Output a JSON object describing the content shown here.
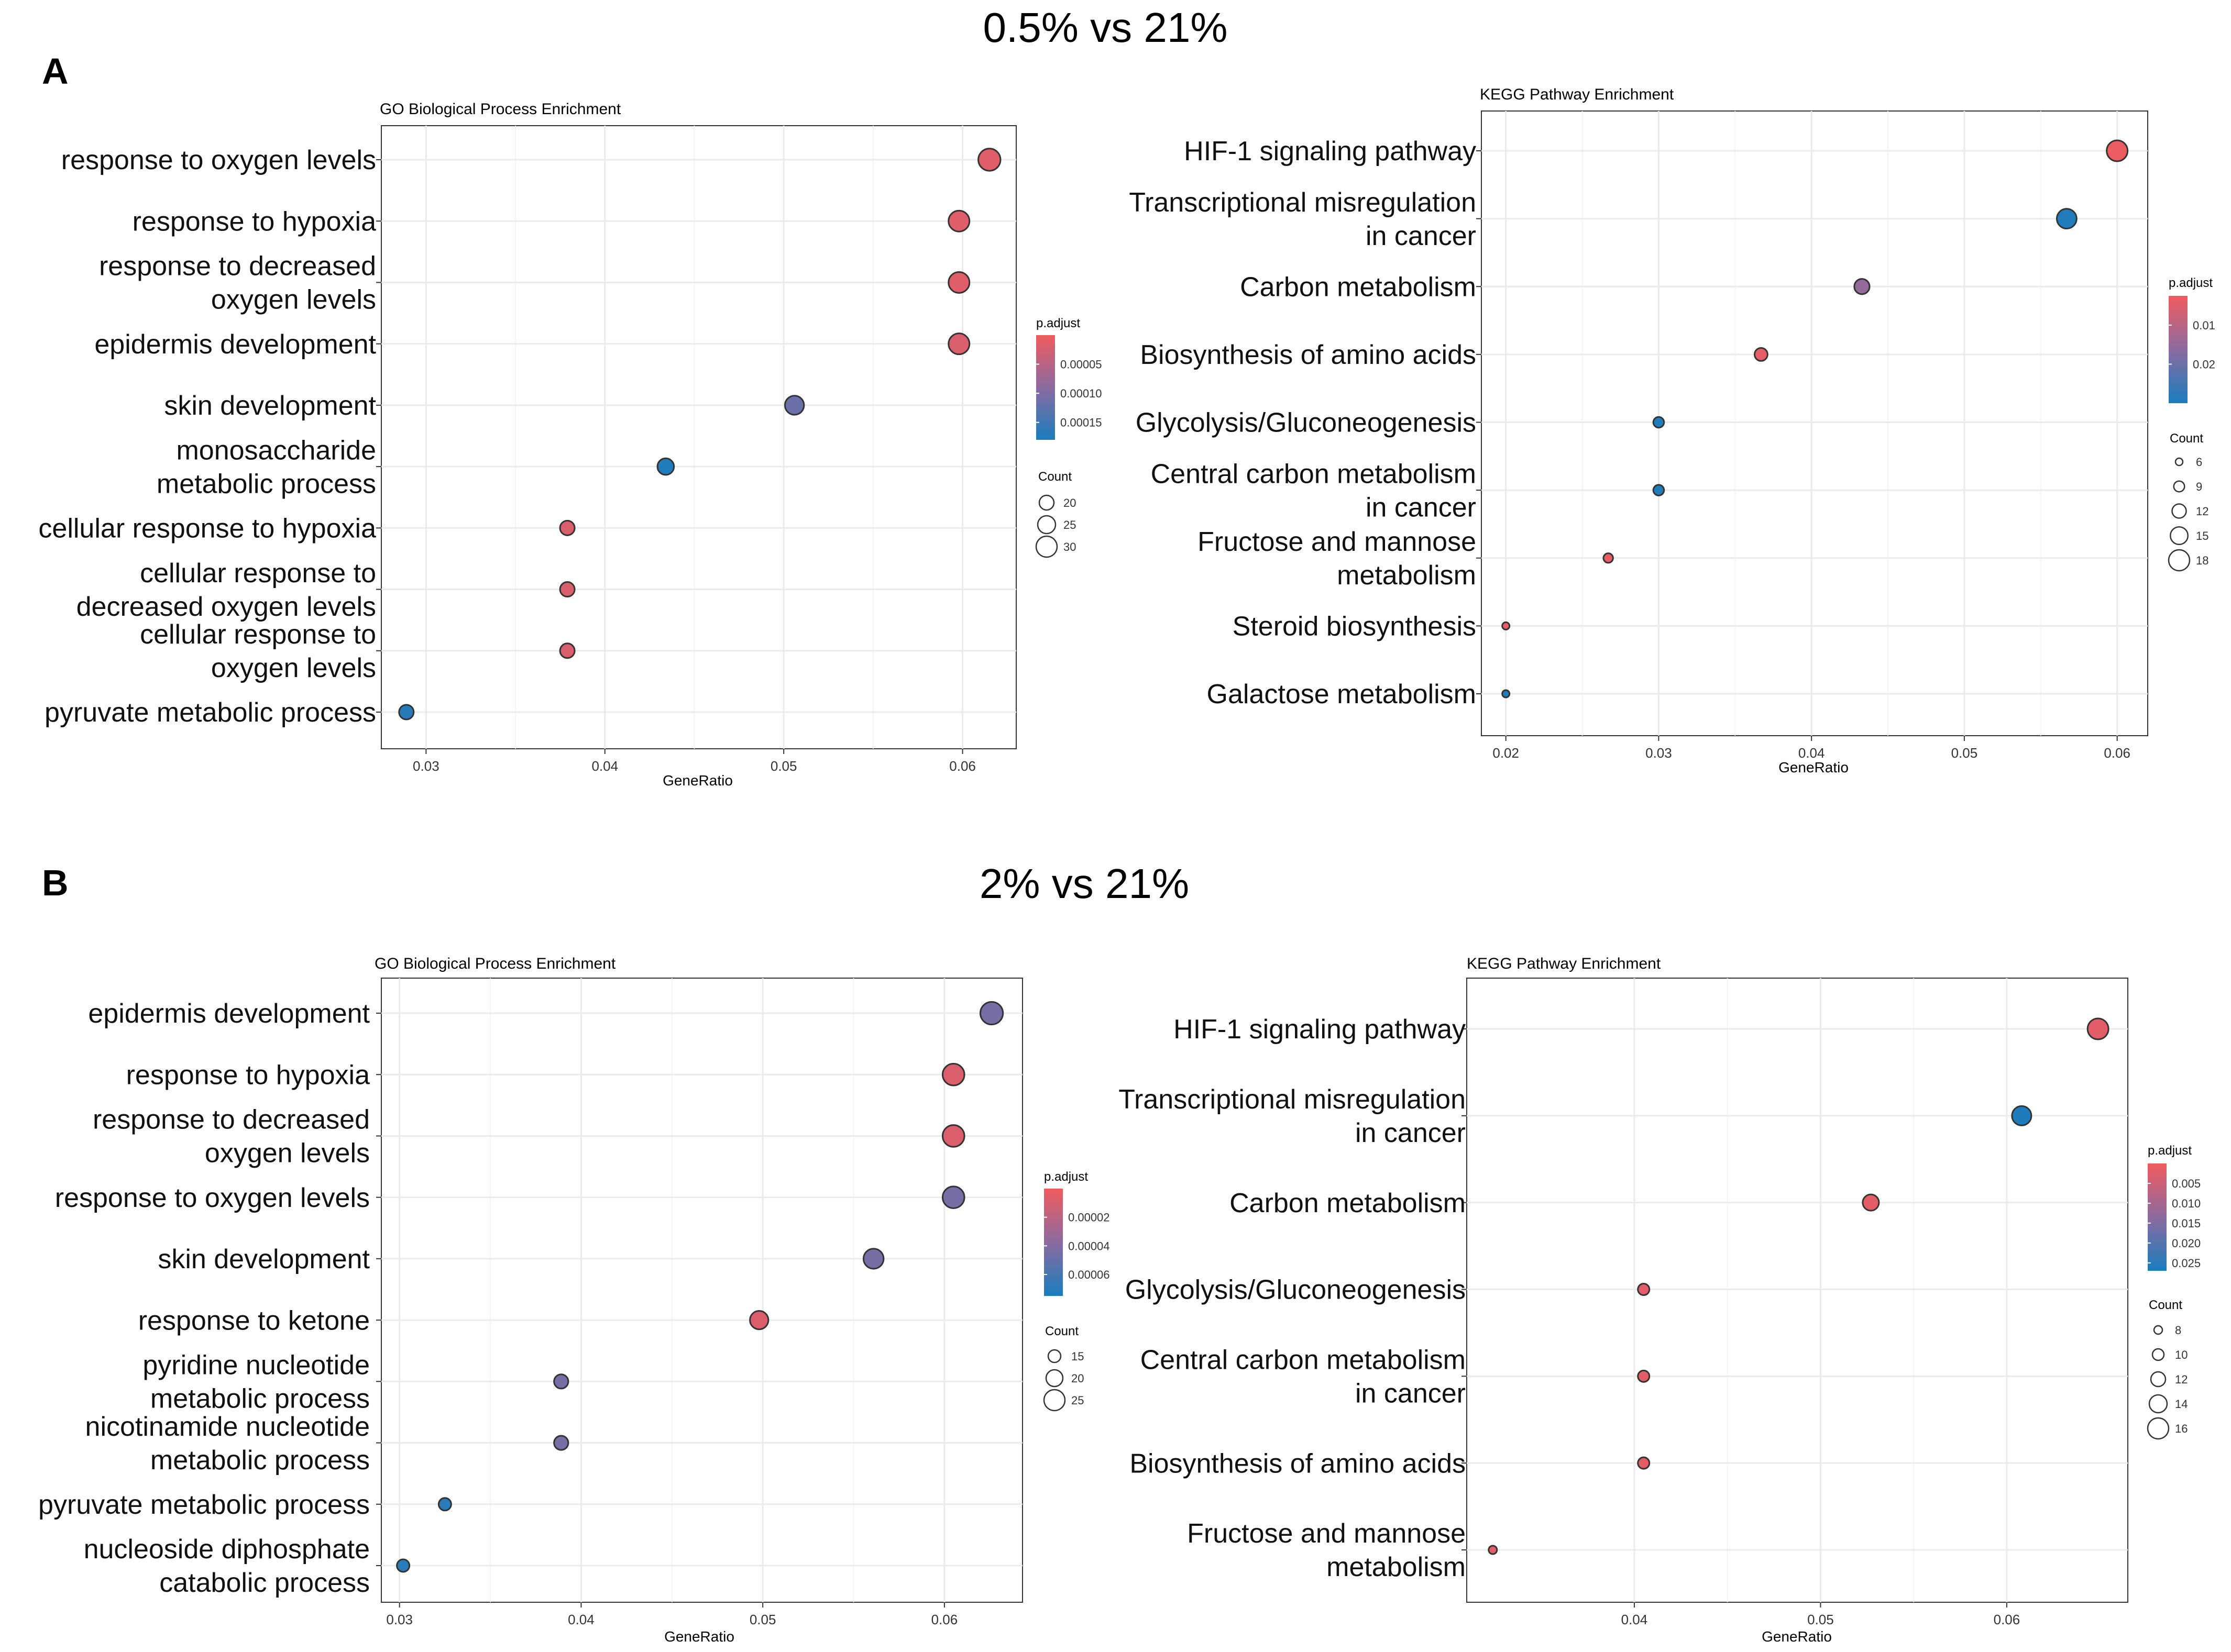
{
  "panels": [
    {
      "letter": "A",
      "heading": "0.5% vs 21%",
      "charts": [
        {
          "type": "scatter",
          "title": "GO Biological Process Enrichment",
          "xlabel": "GeneRatio",
          "xlim": [
            0.0275,
            0.063
          ],
          "xticks": [
            0.03,
            0.04,
            0.05,
            0.06
          ],
          "xtick_labels": [
            "0.03",
            "0.04",
            "0.05",
            "0.06"
          ],
          "terms": [
            {
              "label": "response to oxygen levels",
              "ratio": 0.0615,
              "p": 1.5e-05,
              "count": 32
            },
            {
              "label": "response to hypoxia",
              "ratio": 0.0598,
              "p": 1.5e-05,
              "count": 30
            },
            {
              "label": "response to decreased\noxygen levels",
              "ratio": 0.0598,
              "p": 1.5e-05,
              "count": 30
            },
            {
              "label": "epidermis development",
              "ratio": 0.0598,
              "p": 2e-05,
              "count": 30
            },
            {
              "label": "skin development",
              "ratio": 0.0506,
              "p": 0.000115,
              "count": 27
            },
            {
              "label": "monosaccharide\nmetabolic process",
              "ratio": 0.0434,
              "p": 0.000175,
              "count": 23
            },
            {
              "label": "cellular response to hypoxia",
              "ratio": 0.0379,
              "p": 2e-05,
              "count": 20
            },
            {
              "label": "cellular response to\ndecreased oxygen levels",
              "ratio": 0.0379,
              "p": 2e-05,
              "count": 20
            },
            {
              "label": "cellular response to\noxygen levels",
              "ratio": 0.0379,
              "p": 2e-05,
              "count": 20
            },
            {
              "label": "pyruvate metabolic process",
              "ratio": 0.0289,
              "p": 0.00017,
              "count": 15
            }
          ],
          "legend": {
            "color_title": "p.adjust",
            "color_range": [
              0.0,
              0.00018
            ],
            "color_ticks": [
              5e-05,
              0.0001,
              0.00015
            ],
            "color_tick_labels": [
              "0.00005",
              "0.00010",
              "0.00015"
            ],
            "size_title": "Count",
            "size_values": [
              20,
              25,
              30
            ]
          }
        },
        {
          "type": "scatter",
          "title": "KEGG Pathway Enrichment",
          "xlabel": "GeneRatio",
          "xlim": [
            0.0184,
            0.062
          ],
          "xticks": [
            0.02,
            0.03,
            0.04,
            0.05,
            0.06
          ],
          "xtick_labels": [
            "0.02",
            "0.03",
            "0.04",
            "0.05",
            "0.06"
          ],
          "terms": [
            {
              "label": "HIF-1 signaling pathway",
              "ratio": 0.06,
              "p": 0.003,
              "count": 18
            },
            {
              "label": "Transcriptional misregulation\nin cancer",
              "ratio": 0.0567,
              "p": 0.029,
              "count": 17
            },
            {
              "label": "Carbon metabolism",
              "ratio": 0.0433,
              "p": 0.015,
              "count": 13
            },
            {
              "label": "Biosynthesis of amino acids",
              "ratio": 0.0367,
              "p": 0.004,
              "count": 11
            },
            {
              "label": "Glycolysis/Gluconeogenesis",
              "ratio": 0.03,
              "p": 0.029,
              "count": 9
            },
            {
              "label": "Central carbon metabolism\nin cancer",
              "ratio": 0.03,
              "p": 0.029,
              "count": 9
            },
            {
              "label": "Fructose and mannose\nmetabolism",
              "ratio": 0.0267,
              "p": 0.004,
              "count": 8
            },
            {
              "label": "Steroid biosynthesis",
              "ratio": 0.02,
              "p": 0.004,
              "count": 6
            },
            {
              "label": "Galactose metabolism",
              "ratio": 0.02,
              "p": 0.03,
              "count": 6
            }
          ],
          "legend": {
            "color_title": "p.adjust",
            "color_range": [
              0.0025,
              0.03
            ],
            "color_ticks": [
              0.01,
              0.02
            ],
            "color_tick_labels": [
              "0.01",
              "0.02"
            ],
            "size_title": "Count",
            "size_values": [
              6,
              9,
              12,
              15,
              18
            ]
          }
        }
      ]
    },
    {
      "letter": "B",
      "heading": "2% vs 21%",
      "charts": [
        {
          "type": "scatter",
          "title": "GO Biological Process Enrichment",
          "xlabel": "GeneRatio",
          "xlim": [
            0.029,
            0.0643
          ],
          "xticks": [
            0.03,
            0.04,
            0.05,
            0.06
          ],
          "xtick_labels": [
            "0.03",
            "0.04",
            "0.05",
            "0.06"
          ],
          "terms": [
            {
              "label": "epidermis development",
              "ratio": 0.0626,
              "p": 4.4e-05,
              "count": 27
            },
            {
              "label": "response to hypoxia",
              "ratio": 0.0605,
              "p": 8e-06,
              "count": 26
            },
            {
              "label": "response to decreased\noxygen levels",
              "ratio": 0.0605,
              "p": 8e-06,
              "count": 26
            },
            {
              "label": "response to oxygen levels",
              "ratio": 0.0605,
              "p": 4.4e-05,
              "count": 26
            },
            {
              "label": "skin development",
              "ratio": 0.0561,
              "p": 4.4e-05,
              "count": 24
            },
            {
              "label": "response to ketone",
              "ratio": 0.0498,
              "p": 8e-06,
              "count": 22
            },
            {
              "label": "pyridine nucleotide\nmetabolic process",
              "ratio": 0.0389,
              "p": 4.4e-05,
              "count": 17
            },
            {
              "label": "nicotinamide nucleotide\nmetabolic process",
              "ratio": 0.0389,
              "p": 4.4e-05,
              "count": 17
            },
            {
              "label": "pyruvate metabolic process",
              "ratio": 0.0325,
              "p": 7e-05,
              "count": 14
            },
            {
              "label": "nucleoside diphosphate\ncatabolic process",
              "ratio": 0.0302,
              "p": 7e-05,
              "count": 13
            }
          ],
          "legend": {
            "color_title": "p.adjust",
            "color_range": [
              0.0,
              7.5e-05
            ],
            "color_ticks": [
              2e-05,
              4e-05,
              6e-05
            ],
            "color_tick_labels": [
              "0.00002",
              "0.00004",
              "0.00006"
            ],
            "size_title": "Count",
            "size_values": [
              15,
              20,
              25
            ]
          }
        },
        {
          "type": "scatter",
          "title": "KEGG Pathway Enrichment",
          "xlabel": "GeneRatio",
          "xlim": [
            0.031,
            0.0665
          ],
          "xticks": [
            0.04,
            0.05,
            0.06
          ],
          "xtick_labels": [
            "0.04",
            "0.05",
            "0.06"
          ],
          "terms": [
            {
              "label": "HIF-1 signaling pathway",
              "ratio": 0.0649,
              "p": 0.002,
              "count": 16
            },
            {
              "label": "Transcriptional misregulation\nin cancer",
              "ratio": 0.0608,
              "p": 0.0265,
              "count": 15
            },
            {
              "label": "Carbon metabolism",
              "ratio": 0.0527,
              "p": 0.002,
              "count": 13
            },
            {
              "label": "Glycolysis/Gluconeogenesis",
              "ratio": 0.0405,
              "p": 0.002,
              "count": 10
            },
            {
              "label": "Central carbon metabolism\nin cancer",
              "ratio": 0.0405,
              "p": 0.002,
              "count": 10
            },
            {
              "label": "Biosynthesis of amino acids",
              "ratio": 0.0405,
              "p": 0.002,
              "count": 10
            },
            {
              "label": "Fructose and mannose\nmetabolism",
              "ratio": 0.0324,
              "p": 0.002,
              "count": 8
            }
          ],
          "legend": {
            "color_title": "p.adjust",
            "color_range": [
              0.0,
              0.027
            ],
            "color_ticks": [
              0.005,
              0.01,
              0.015,
              0.02,
              0.025
            ],
            "color_tick_labels": [
              "0.005",
              "0.010",
              "0.015",
              "0.020",
              "0.025"
            ],
            "size_title": "Count",
            "size_values": [
              8,
              10,
              12,
              14,
              16
            ]
          }
        }
      ]
    }
  ],
  "colors": {
    "low_p": "#f15b5e",
    "high_p": "#1a7dbd",
    "mid_p": "#8b6ba0",
    "grid": "#ebebeb",
    "frame": "#333333"
  }
}
